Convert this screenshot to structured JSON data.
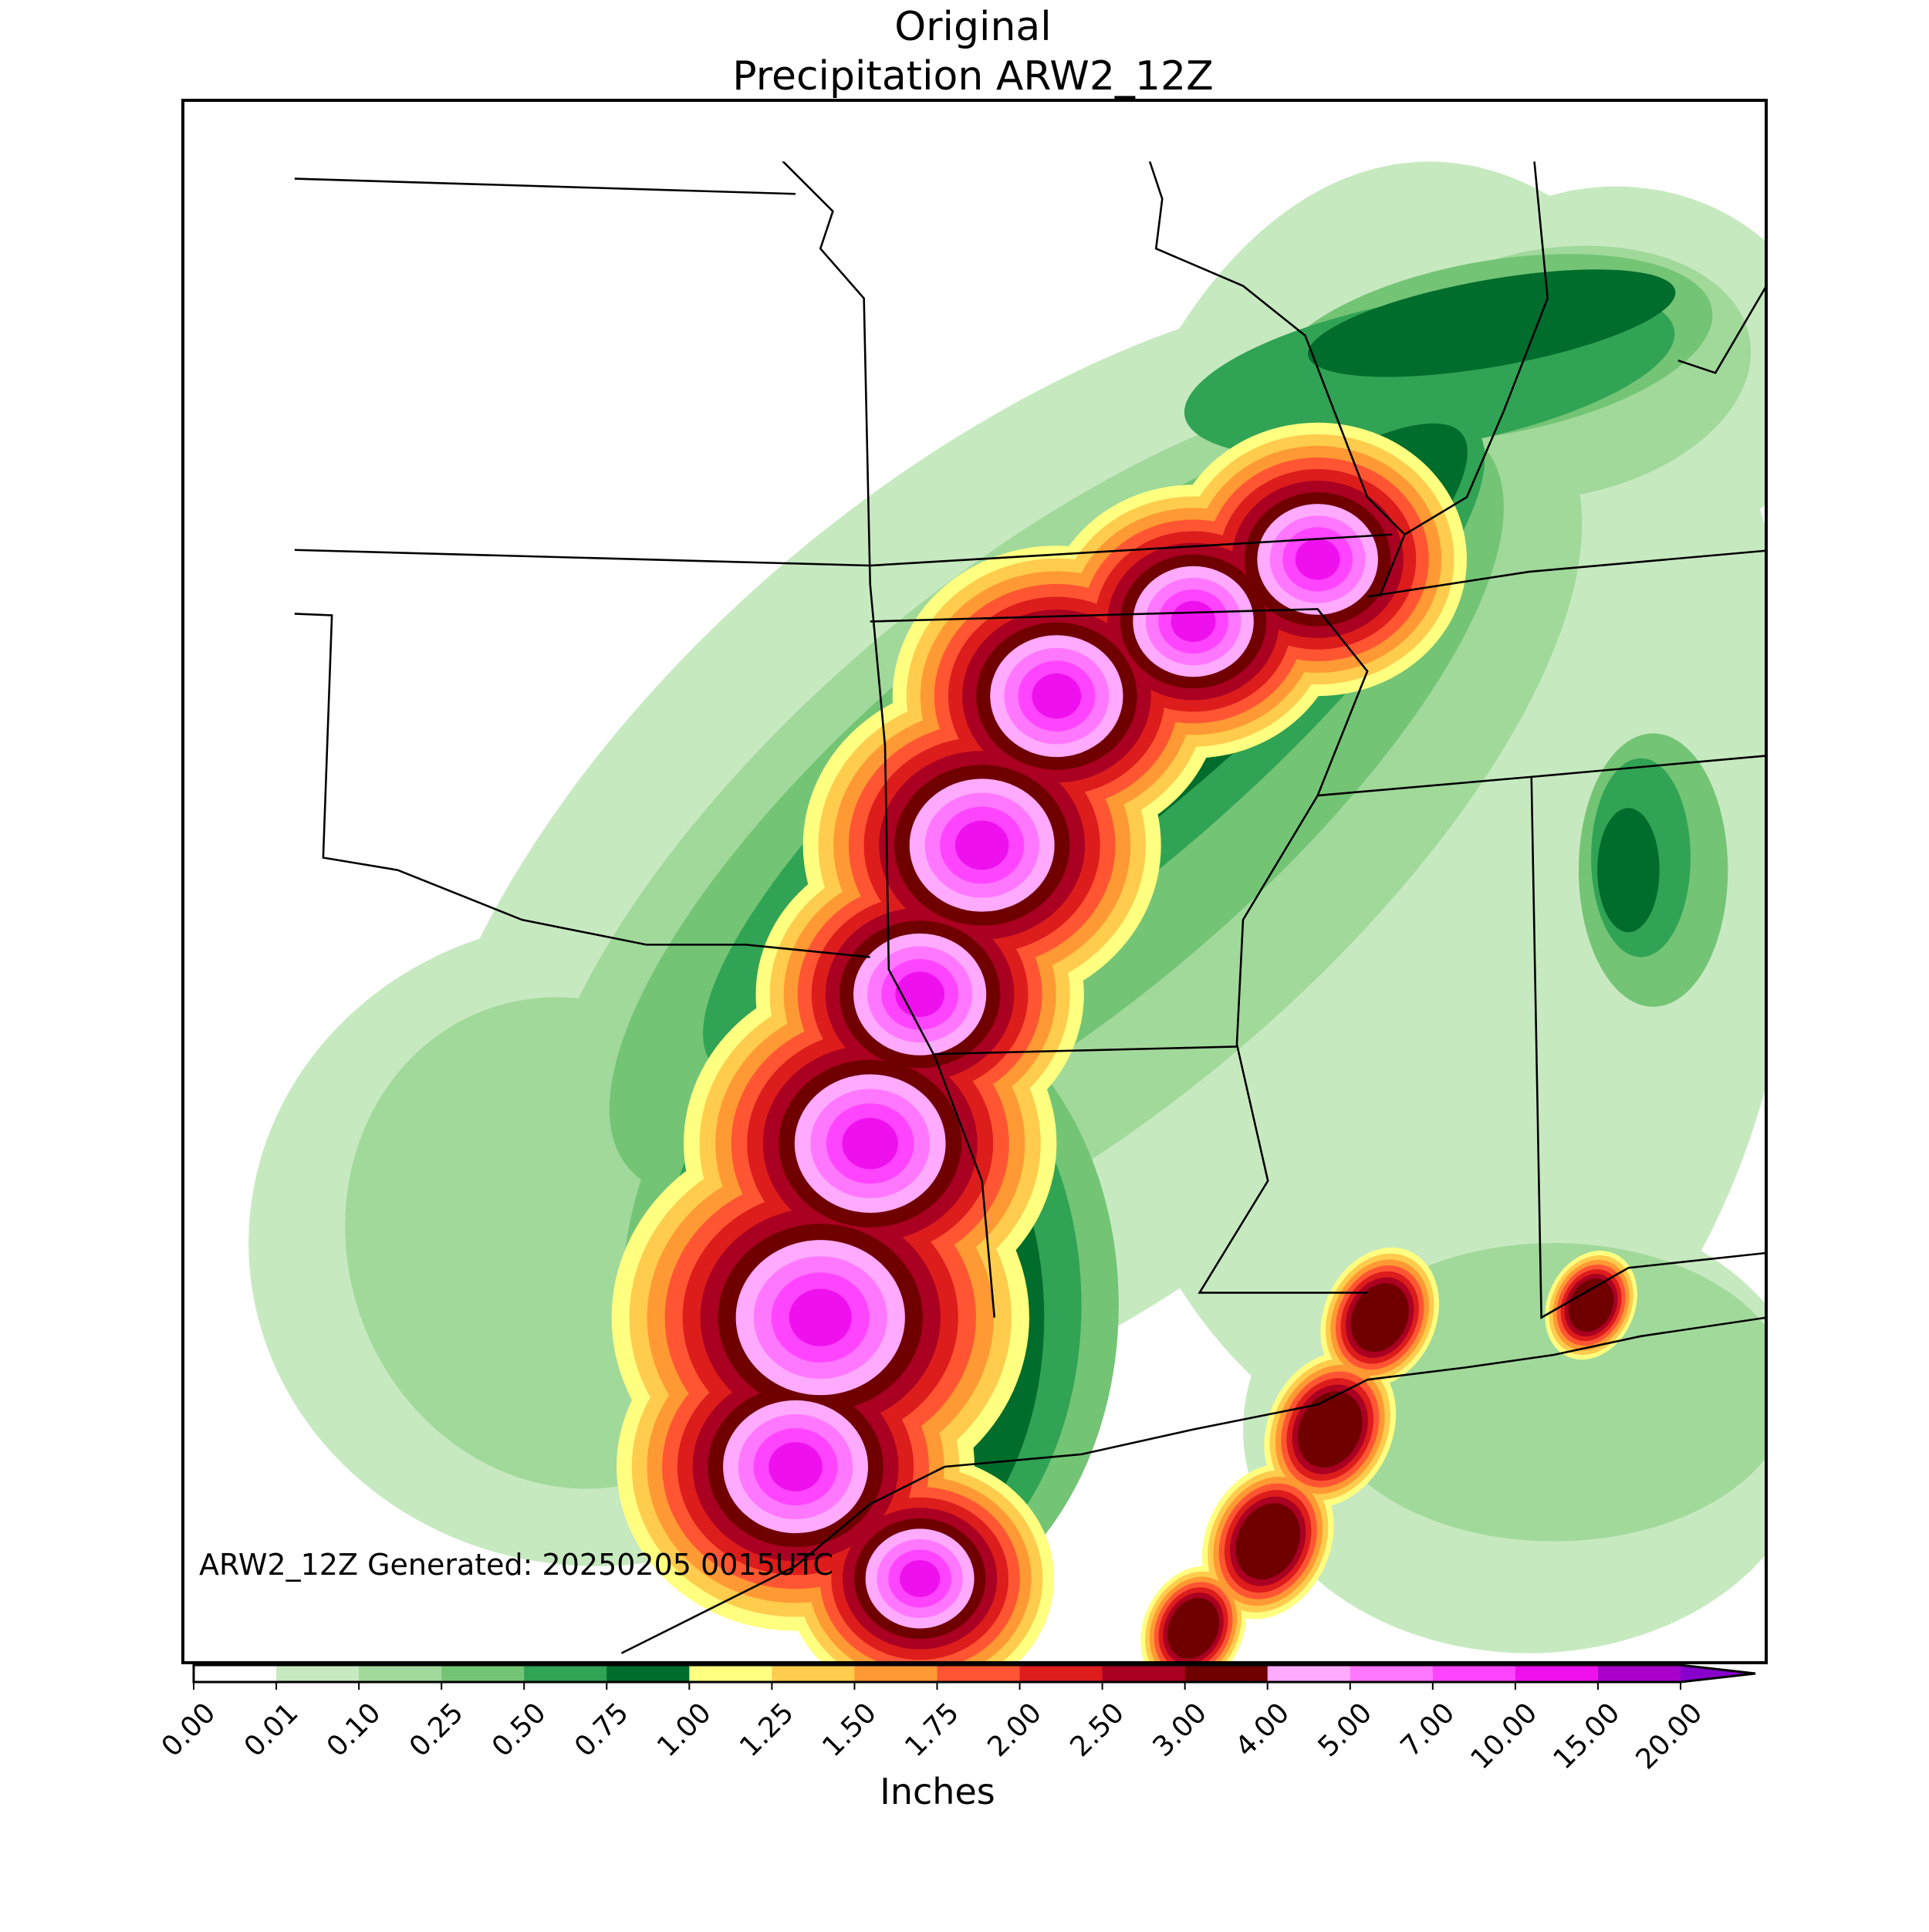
{
  "title": [
    "Original",
    "Precipitation ARW2_12Z"
  ],
  "annotation": "ARW2_12Z Generated: 20250205 0015UTC",
  "colorbar": {
    "label": "Inches",
    "ticks": [
      {
        "value": 0,
        "label": "0.00"
      },
      {
        "value": 0.01,
        "label": "0.01"
      },
      {
        "value": 0.1,
        "label": "0.10"
      },
      {
        "value": 0.25,
        "label": "0.25"
      },
      {
        "value": 0.5,
        "label": "0.50"
      },
      {
        "value": 0.75,
        "label": "0.75"
      },
      {
        "value": 1,
        "label": "1.00"
      },
      {
        "value": 1.25,
        "label": "1.25"
      },
      {
        "value": 1.5,
        "label": "1.50"
      },
      {
        "value": 1.75,
        "label": "1.75"
      },
      {
        "value": 2,
        "label": "2.00"
      },
      {
        "value": 2.5,
        "label": "2.50"
      },
      {
        "value": 3,
        "label": "3.00"
      },
      {
        "value": 4,
        "label": "4.00"
      },
      {
        "value": 5,
        "label": "5.00"
      },
      {
        "value": 7,
        "label": "7.00"
      },
      {
        "value": 10,
        "label": "10.00"
      },
      {
        "value": 15,
        "label": "15.00"
      },
      {
        "value": 20,
        "label": "20.00"
      }
    ],
    "colors": [
      "#ffffff",
      "#c7e9c0",
      "#a1d99b",
      "#74c476",
      "#31a354",
      "#006d2c",
      "#ffff80",
      "#ffcc4d",
      "#ff9933",
      "#ff5533",
      "#dd1c1c",
      "#aa0022",
      "#700000",
      "#ffaaff",
      "#ff77ff",
      "#ff44ff",
      "#ee11ee",
      "#aa00cc"
    ],
    "extend_color": "#8800cc"
  }
}
